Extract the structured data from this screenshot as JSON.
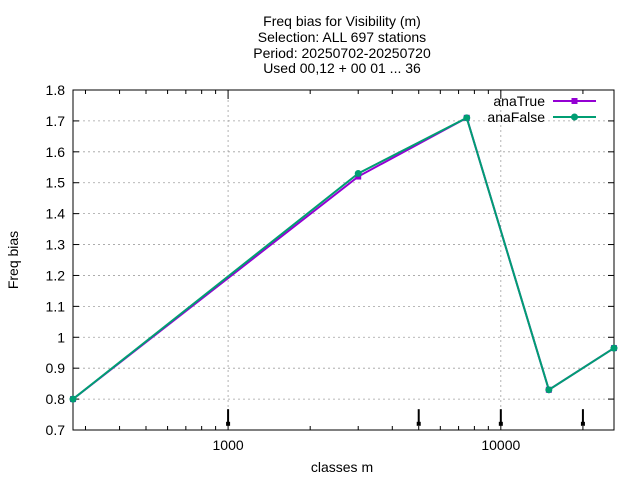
{
  "chart_data": {
    "type": "line",
    "title": [
      "Freq bias  for Visibility (m)",
      "Selection: ALL    697 stations",
      "Period: 20250702-20250720",
      "Used 00,12 + 00 01 ... 36"
    ],
    "xlabel": "classes m",
    "ylabel": "Freq bias",
    "xscale": "log",
    "xlim": [
      270,
      26000
    ],
    "ylim": [
      0.7,
      1.8
    ],
    "xticks": [
      1000,
      10000
    ],
    "xtick_labels": [
      "1000",
      "10000"
    ],
    "yticks": [
      0.7,
      0.8,
      0.9,
      1.0,
      1.1,
      1.2,
      1.3,
      1.4,
      1.5,
      1.6,
      1.7,
      1.8
    ],
    "ytick_labels": [
      "0.7",
      "0.8",
      "0.9",
      "1",
      "1.1",
      "1.2",
      "1.3",
      "1.4",
      "1.5",
      "1.6",
      "1.7",
      "1.8"
    ],
    "grid": true,
    "legend_position": "top-right",
    "series": [
      {
        "name": "anaTrue",
        "color": "#9400d3",
        "marker": "square",
        "x": [
          270,
          3000,
          7500,
          15000,
          26000
        ],
        "y": [
          0.8,
          1.52,
          1.71,
          0.83,
          0.965
        ]
      },
      {
        "name": "anaFalse",
        "color": "#009e73",
        "marker": "circle",
        "x": [
          270,
          3000,
          7500,
          15000,
          26000
        ],
        "y": [
          0.8,
          1.53,
          1.71,
          0.83,
          0.965
        ]
      }
    ],
    "class_markers": {
      "color": "#000000",
      "x": [
        1000,
        5000,
        10000,
        20000
      ],
      "y_top": [
        0.735,
        0.735,
        0.735,
        0.735
      ],
      "y_bottom": [
        0.72,
        0.72,
        0.72,
        0.72
      ]
    }
  }
}
